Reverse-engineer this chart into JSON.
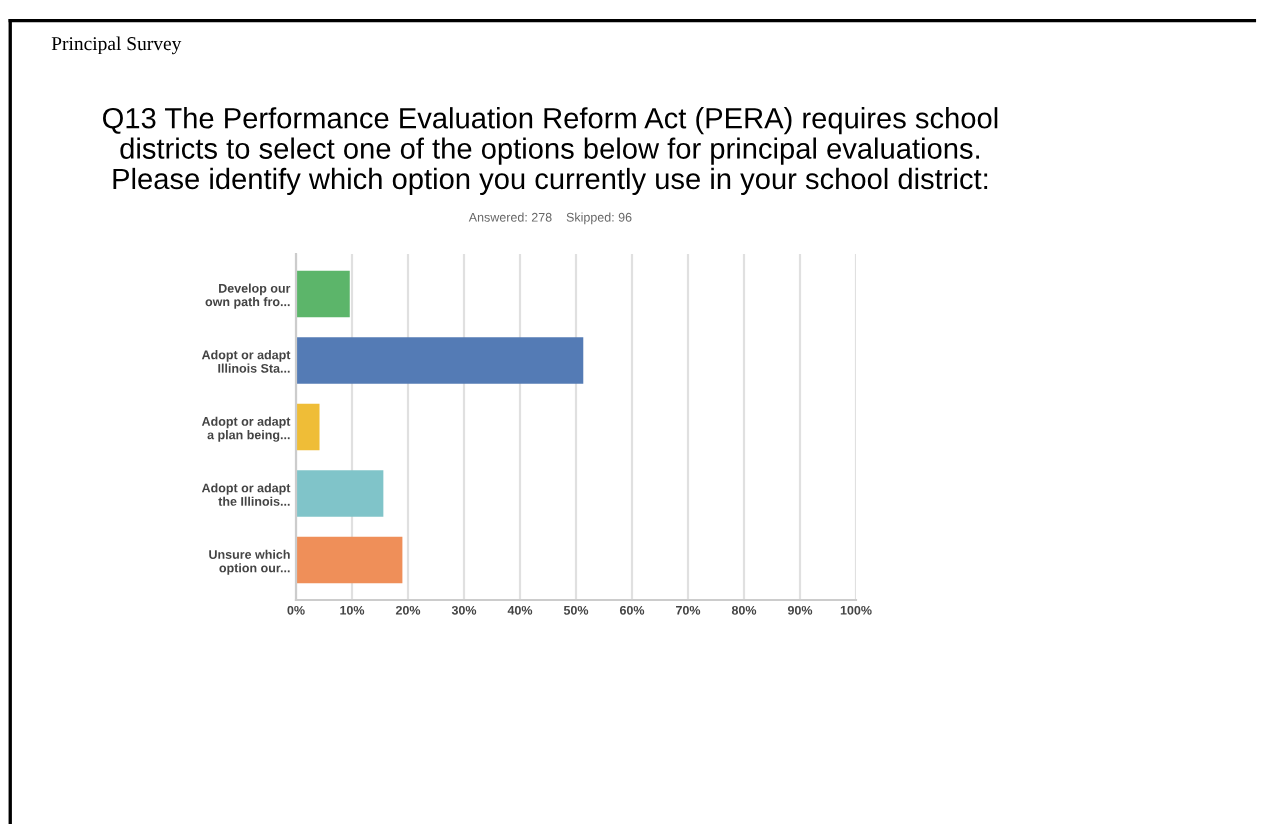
{
  "chart_data": {
    "type": "bar",
    "orientation": "horizontal",
    "title": "Q13 The Performance Evaluation Reform Act (PERA) requires school\ndistricts to select one of the options below for principal evaluations.\nPlease identify which option you currently use in your school district:",
    "subtitle": "Answered: 278    Skipped: 96",
    "annotations": [
      "Principal Survey"
    ],
    "categories": [
      "Develop our\nown path fro...",
      "Adopt or adapt\nIllinois Sta...",
      "Adopt or adapt\na plan being...",
      "Adopt or adapt\nthe Illinois...",
      "Unsure which\noption our..."
    ],
    "values": [
      9.6,
      51.3,
      4.2,
      15.6,
      19.0
    ],
    "colors": [
      "#5cb56a",
      "#547bb5",
      "#efbd37",
      "#80c4c9",
      "#ef8f59"
    ],
    "xlim": [
      0,
      100
    ],
    "xticks": [
      {
        "value": 0,
        "label": "0%"
      },
      {
        "value": 10,
        "label": "10%"
      },
      {
        "value": 20,
        "label": "20%"
      },
      {
        "value": 30,
        "label": "30%"
      },
      {
        "value": 40,
        "label": "40%"
      },
      {
        "value": 50,
        "label": "50%"
      },
      {
        "value": 60,
        "label": "60%"
      },
      {
        "value": 70,
        "label": "70%"
      },
      {
        "value": 80,
        "label": "80%"
      },
      {
        "value": 90,
        "label": "90%"
      },
      {
        "value": 100,
        "label": "100%"
      }
    ],
    "grid": "x",
    "legend": false
  }
}
